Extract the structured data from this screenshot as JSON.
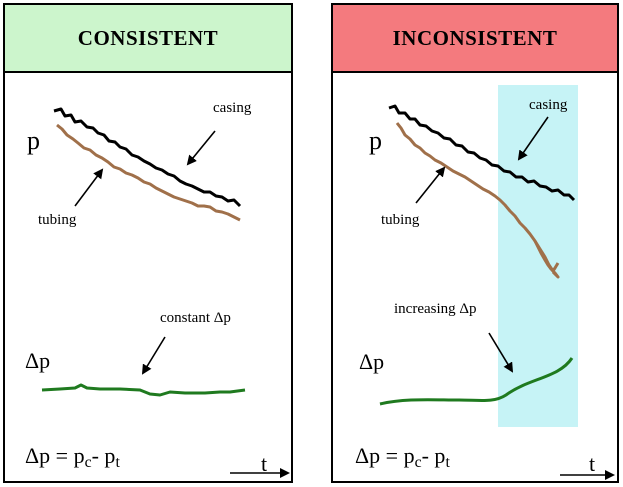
{
  "panels": {
    "left": {
      "title": "CONSISTENT",
      "header_color": "#ccf5cc",
      "p_label": "p",
      "casing_label": "casing",
      "tubing_label": "tubing",
      "dp_annotation": "constant Δp",
      "dp_label": "Δp",
      "eq_lhs": "Δp",
      "eq_eq": " = p",
      "eq_sub_c": "c",
      "eq_minus": "- p",
      "eq_sub_t": "t",
      "t_label": "t"
    },
    "right": {
      "title": "INCONSISTENT",
      "header_color": "#f47a7e",
      "highlight_color": "#c6f3f6",
      "p_label": "p",
      "casing_label": "casing",
      "tubing_label": "tubing",
      "dp_annotation": "increasing Δp",
      "dp_label": "Δp",
      "eq_lhs": "Δp",
      "eq_eq": " = p",
      "eq_sub_c": "c",
      "eq_minus": "- p",
      "eq_sub_t": "t",
      "t_label": "t"
    }
  },
  "colors": {
    "casing": "#000000",
    "tubing": "#a0704a",
    "delta_p": "#1f7a1f"
  }
}
